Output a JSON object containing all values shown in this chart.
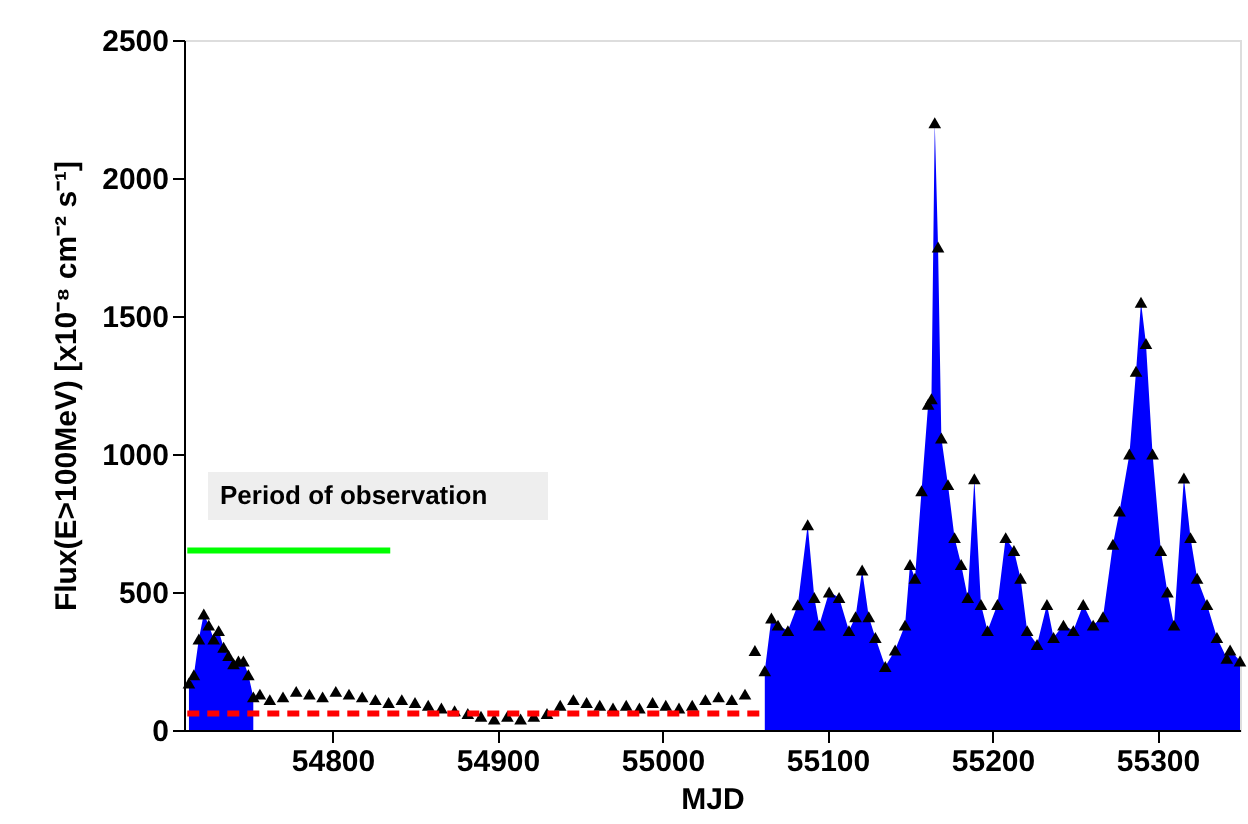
{
  "chart_data": {
    "type": "area",
    "xlabel": "MJD",
    "ylabel": "Flux(E>100MeV) [x10⁻⁸ cm⁻² s⁻¹]",
    "xlim": [
      54710,
      55350
    ],
    "xticks": [
      54800,
      54900,
      55000,
      55100,
      55200,
      55300
    ],
    "ylim": [
      0,
      2500
    ],
    "yticks": [
      0,
      500,
      1000,
      1500,
      2000,
      2500
    ],
    "grid": false,
    "annotations": [
      "Period of observation"
    ],
    "series": [
      {
        "color": "#0000ff",
        "x": [
          54713,
          54716,
          54719,
          54722,
          54725,
          54728,
          54731,
          54734,
          54737,
          54740,
          54743,
          54746,
          54749,
          54752,
          54900,
          55062,
          55066,
          55070,
          55076,
          55082,
          55088,
          55092,
          55095,
          55101,
          55107,
          55113,
          55117,
          55121,
          55125,
          55129,
          55135,
          55141,
          55147,
          55150,
          55153,
          55157,
          55161,
          55163,
          55165,
          55167,
          55169,
          55173,
          55177,
          55181,
          55185,
          55189,
          55193,
          55197,
          55203,
          55208,
          55213,
          55217,
          55221,
          55227,
          55233,
          55237,
          55243,
          55249,
          55255,
          55261,
          55267,
          55273,
          55277,
          55283,
          55287,
          55290,
          55293,
          55297,
          55302,
          55306,
          55310,
          55316,
          55320,
          55324,
          55330,
          55336,
          55342,
          55344,
          55350
        ],
        "values": [
          170,
          200,
          330,
          420,
          380,
          330,
          360,
          300,
          270,
          240,
          250,
          250,
          200,
          120,
          null,
          215,
          406,
          380,
          360,
          454,
          744,
          480,
          380,
          500,
          480,
          360,
          410,
          580,
          410,
          335,
          230,
          290,
          380,
          600,
          550,
          867,
          1180,
          1200,
          2200,
          1750,
          1058,
          889,
          697,
          600,
          480,
          910,
          455,
          360,
          455,
          697,
          650,
          550,
          360,
          310,
          455,
          335,
          380,
          360,
          455,
          380,
          410,
          673,
          793,
          1000,
          1300,
          1550,
          1400,
          1000,
          650,
          500,
          380,
          913,
          697,
          550,
          455,
          335,
          260,
          290,
          250
        ]
      },
      {
        "type": "scatter",
        "color": "#000000",
        "marker": "triangle",
        "x": [
          54713,
          54716,
          54719,
          54722,
          54725,
          54728,
          54731,
          54734,
          54737,
          54740,
          54743,
          54746,
          54749,
          54752,
          54756,
          54762,
          54770,
          54778,
          54786,
          54794,
          54802,
          54810,
          54818,
          54826,
          54834,
          54842,
          54850,
          54858,
          54866,
          54874,
          54882,
          54890,
          54898,
          54906,
          54914,
          54922,
          54930,
          54938,
          54946,
          54954,
          54962,
          54970,
          54978,
          54986,
          54994,
          55002,
          55010,
          55018,
          55026,
          55034,
          55042,
          55050,
          55056,
          55062,
          55066,
          55070,
          55076,
          55082,
          55088,
          55092,
          55095,
          55101,
          55107,
          55113,
          55117,
          55121,
          55125,
          55129,
          55135,
          55141,
          55147,
          55150,
          55153,
          55157,
          55161,
          55163,
          55165,
          55167,
          55169,
          55173,
          55177,
          55181,
          55185,
          55189,
          55193,
          55197,
          55203,
          55208,
          55213,
          55217,
          55221,
          55227,
          55233,
          55237,
          55243,
          55249,
          55255,
          55261,
          55267,
          55273,
          55277,
          55283,
          55287,
          55290,
          55293,
          55297,
          55302,
          55306,
          55310,
          55316,
          55320,
          55324,
          55330,
          55336,
          55342,
          55344,
          55350
        ],
        "values": [
          170,
          200,
          330,
          420,
          380,
          330,
          360,
          300,
          270,
          240,
          250,
          250,
          200,
          120,
          130,
          110,
          120,
          140,
          130,
          120,
          140,
          130,
          120,
          110,
          100,
          110,
          100,
          90,
          80,
          70,
          60,
          50,
          40,
          50,
          40,
          50,
          60,
          90,
          110,
          100,
          90,
          80,
          90,
          80,
          100,
          90,
          80,
          90,
          110,
          120,
          110,
          130,
          288,
          215,
          406,
          380,
          360,
          454,
          744,
          480,
          380,
          500,
          480,
          360,
          410,
          580,
          410,
          335,
          230,
          290,
          380,
          600,
          550,
          867,
          1180,
          1200,
          2200,
          1750,
          1058,
          889,
          697,
          600,
          480,
          910,
          455,
          360,
          455,
          697,
          650,
          550,
          360,
          310,
          455,
          335,
          380,
          360,
          455,
          380,
          410,
          673,
          793,
          1000,
          1300,
          1550,
          1400,
          1000,
          650,
          500,
          380,
          913,
          697,
          550,
          455,
          335,
          260,
          290,
          250
        ]
      },
      {
        "type": "line",
        "color": "#ff0000",
        "line_style": "dashed",
        "x": [
          54712,
          55060
        ],
        "values": [
          60,
          60
        ]
      },
      {
        "type": "line",
        "color": "#00ff00",
        "line_style": "solid",
        "x": [
          54712,
          54835
        ],
        "values": [
          650,
          650
        ]
      }
    ]
  }
}
